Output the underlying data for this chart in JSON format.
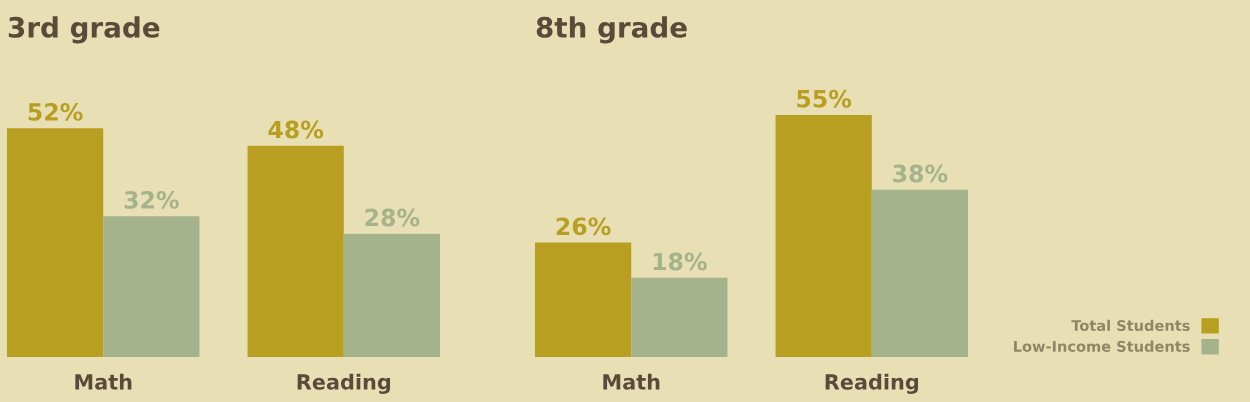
{
  "chart_data": [
    {
      "type": "bar",
      "title": "3rd grade",
      "categories": [
        "Math",
        "Reading"
      ],
      "series": [
        {
          "color": "#b89f22",
          "values": [
            52,
            48
          ],
          "value_labels": [
            "52%",
            "48%"
          ]
        },
        {
          "color": "#a5b38c",
          "values": [
            32,
            28
          ],
          "value_labels": [
            "32%",
            "28%"
          ]
        }
      ],
      "tick_labels": "x",
      "grid": false
    },
    {
      "type": "bar",
      "title": "8th grade",
      "categories": [
        "Math",
        "Reading"
      ],
      "series": [
        {
          "name": "Total Students",
          "color": "#b89f22",
          "values": [
            26,
            55
          ],
          "value_labels": [
            "26%",
            "55%"
          ]
        },
        {
          "name": "Low-Income Students",
          "color": "#a5b38c",
          "values": [
            18,
            38
          ],
          "value_labels": [
            "18%",
            "38%"
          ]
        }
      ],
      "tick_labels": "x",
      "grid": false,
      "legend": "bottom right"
    }
  ]
}
